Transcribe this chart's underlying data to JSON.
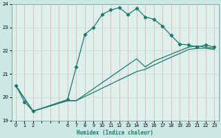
{
  "xlabel": "Humidex (Indice chaleur)",
  "bg_color": "#cce8e4",
  "plot_bg_color": "#ddf0ec",
  "xaxis_bg_color": "#9ecfca",
  "line_color": "#1a7a6e",
  "vgrid_color": "#e8b0b0",
  "hgrid_color": "#c8ddd9",
  "ylim": [
    19,
    24
  ],
  "yticks": [
    19,
    20,
    21,
    22,
    23,
    24
  ],
  "xticks_all": [
    0,
    1,
    2,
    3,
    4,
    5,
    6,
    7,
    8,
    9,
    10,
    11,
    12,
    13,
    14,
    15,
    16,
    17,
    18,
    19,
    20,
    21,
    22,
    23
  ],
  "xtick_labels": [
    "0",
    "1",
    "2",
    "",
    "",
    "",
    "6",
    "7",
    "8",
    "9",
    "10",
    "11",
    "12",
    "13",
    "14",
    "15",
    "16",
    "17",
    "18",
    "19",
    "20",
    "21",
    "22",
    "23"
  ],
  "line1_x": [
    0,
    1,
    2,
    6,
    7,
    8,
    9,
    10,
    11,
    12,
    13,
    14,
    15,
    16,
    17,
    18,
    19,
    20,
    21,
    22,
    23
  ],
  "line1_y": [
    20.5,
    19.8,
    19.4,
    19.9,
    21.3,
    22.7,
    23.0,
    23.55,
    23.75,
    23.85,
    23.55,
    23.82,
    23.45,
    23.35,
    23.05,
    22.65,
    22.28,
    22.25,
    22.15,
    22.25,
    22.15
  ],
  "line2_x": [
    0,
    2,
    6,
    7,
    14,
    15,
    16,
    17,
    18,
    19,
    20,
    21,
    22,
    23
  ],
  "line2_y": [
    20.5,
    19.4,
    19.85,
    19.85,
    21.65,
    21.3,
    21.55,
    21.7,
    21.85,
    22.0,
    22.15,
    22.2,
    22.15,
    22.1
  ],
  "line3_x": [
    0,
    2,
    6,
    7,
    14,
    15,
    16,
    17,
    18,
    19,
    20,
    21,
    22,
    23
  ],
  "line3_y": [
    20.5,
    19.4,
    19.85,
    19.85,
    21.1,
    21.2,
    21.38,
    21.55,
    21.72,
    21.88,
    22.05,
    22.1,
    22.1,
    22.05
  ]
}
